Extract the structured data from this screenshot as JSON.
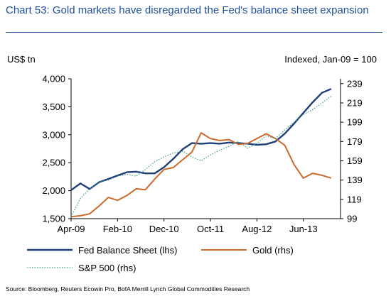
{
  "title": "Chart 53: Gold markets have disregarded the Fed's balance sheet expansion",
  "source": "Source: Bloomberg, Reuters Ecowin Pro, BofA Merrill Lynch Global Commodities Research",
  "chart_data": {
    "type": "line",
    "ylabel_left": "US$ tn",
    "ylabel_right": "Indexed, Jan-09 = 100",
    "x_tick_labels": [
      "Apr-09",
      "Feb-10",
      "Dec-10",
      "Oct-11",
      "Aug-12",
      "Jun-13"
    ],
    "y_left": {
      "ylim": [
        1500,
        4000
      ],
      "ticks": [
        "1,500",
        "2,000",
        "2,500",
        "3,000",
        "3,500",
        "4,000"
      ],
      "tick_values": [
        1500,
        2000,
        2500,
        3000,
        3500,
        4000
      ]
    },
    "y_right": {
      "ylim": [
        99,
        244
      ],
      "ticks": [
        "99",
        "119",
        "139",
        "159",
        "179",
        "199",
        "219",
        "239"
      ],
      "tick_values": [
        99,
        119,
        139,
        159,
        179,
        199,
        219,
        239
      ]
    },
    "legend": [
      "Fed Balance Sheet (lhs)",
      "Gold (rhs)",
      "S&P 500 (rhs)"
    ],
    "series": [
      {
        "name": "Fed Balance Sheet (lhs)",
        "axis": "left",
        "color": "#1f3f78",
        "style": "solid",
        "x": [
          "2009-04",
          "2009-06",
          "2009-08",
          "2009-10",
          "2009-12",
          "2010-02",
          "2010-04",
          "2010-06",
          "2010-08",
          "2010-10",
          "2010-12",
          "2011-02",
          "2011-04",
          "2011-06",
          "2011-08",
          "2011-10",
          "2011-12",
          "2012-02",
          "2012-04",
          "2012-06",
          "2012-08",
          "2012-10",
          "2012-12",
          "2013-02",
          "2013-04",
          "2013-06",
          "2013-08",
          "2013-10",
          "2013-12"
        ],
        "y": [
          2010,
          2130,
          2030,
          2150,
          2210,
          2270,
          2330,
          2340,
          2310,
          2310,
          2420,
          2570,
          2740,
          2850,
          2840,
          2850,
          2840,
          2860,
          2850,
          2840,
          2820,
          2830,
          2880,
          3020,
          3200,
          3390,
          3580,
          3750,
          3820
        ]
      },
      {
        "name": "Gold (rhs)",
        "axis": "right",
        "color": "#cc6a2c",
        "style": "solid",
        "x": [
          "2009-04",
          "2009-06",
          "2009-08",
          "2009-10",
          "2009-12",
          "2010-02",
          "2010-04",
          "2010-06",
          "2010-08",
          "2010-10",
          "2010-12",
          "2011-02",
          "2011-04",
          "2011-06",
          "2011-08",
          "2011-10",
          "2011-12",
          "2012-02",
          "2012-04",
          "2012-06",
          "2012-08",
          "2012-10",
          "2012-12",
          "2013-02",
          "2013-04",
          "2013-06",
          "2013-08",
          "2013-10",
          "2013-12"
        ],
        "y": [
          101,
          102,
          104,
          112,
          121,
          118,
          123,
          130,
          129,
          140,
          150,
          152,
          160,
          168,
          188,
          182,
          180,
          181,
          176,
          177,
          182,
          187,
          182,
          175,
          155,
          141,
          146,
          144,
          141
        ]
      },
      {
        "name": "S&P 500 (rhs)",
        "axis": "right",
        "color": "#3a9a86",
        "style": "dotted",
        "x": [
          "2009-04",
          "2009-06",
          "2009-08",
          "2009-10",
          "2009-12",
          "2010-02",
          "2010-04",
          "2010-06",
          "2010-08",
          "2010-10",
          "2010-12",
          "2011-02",
          "2011-04",
          "2011-06",
          "2011-08",
          "2011-10",
          "2011-12",
          "2012-02",
          "2012-04",
          "2012-06",
          "2012-08",
          "2012-10",
          "2012-12",
          "2013-02",
          "2013-04",
          "2013-06",
          "2013-08",
          "2013-10",
          "2013-12"
        ],
        "y": [
          101,
          120,
          130,
          137,
          139,
          143,
          145,
          143,
          150,
          158,
          163,
          167,
          169,
          163,
          159,
          165,
          170,
          174,
          179,
          172,
          177,
          185,
          182,
          191,
          199,
          207,
          212,
          219,
          226
        ]
      }
    ]
  }
}
